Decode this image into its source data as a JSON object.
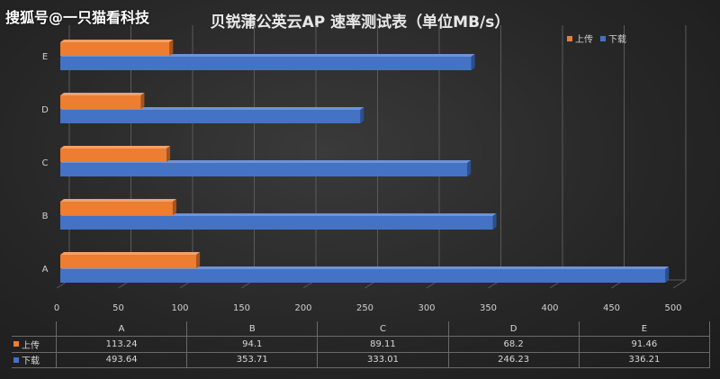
{
  "watermark": "搜狐号@一只猫看科技",
  "chart_data": {
    "type": "bar",
    "orientation": "horizontal",
    "title": "贝锐蒲公英云AP  速率测试表（单位MB/s）",
    "categories": [
      "A",
      "B",
      "C",
      "D",
      "E"
    ],
    "series": [
      {
        "name": "上传",
        "color": "#ed7d31",
        "values": [
          113.24,
          94.1,
          89.11,
          68.2,
          91.46
        ]
      },
      {
        "name": "下载",
        "color": "#4472c4",
        "values": [
          493.64,
          353.71,
          333.01,
          246.23,
          336.21
        ]
      }
    ],
    "xlim": [
      0,
      500
    ],
    "xticks": [
      "0",
      "50",
      "100",
      "150",
      "200",
      "250",
      "300",
      "350",
      "400",
      "450",
      "500"
    ],
    "grid": true,
    "legend": "top-right",
    "data_table": {
      "headers": [
        "A",
        "B",
        "C",
        "D",
        "E"
      ],
      "rows": [
        {
          "label": "上传",
          "values": [
            "113.24",
            "94.1",
            "89.11",
            "68.2",
            "91.46"
          ]
        },
        {
          "label": "下载",
          "values": [
            "493.64",
            "353.71",
            "333.01",
            "246.23",
            "336.21"
          ]
        }
      ]
    }
  }
}
